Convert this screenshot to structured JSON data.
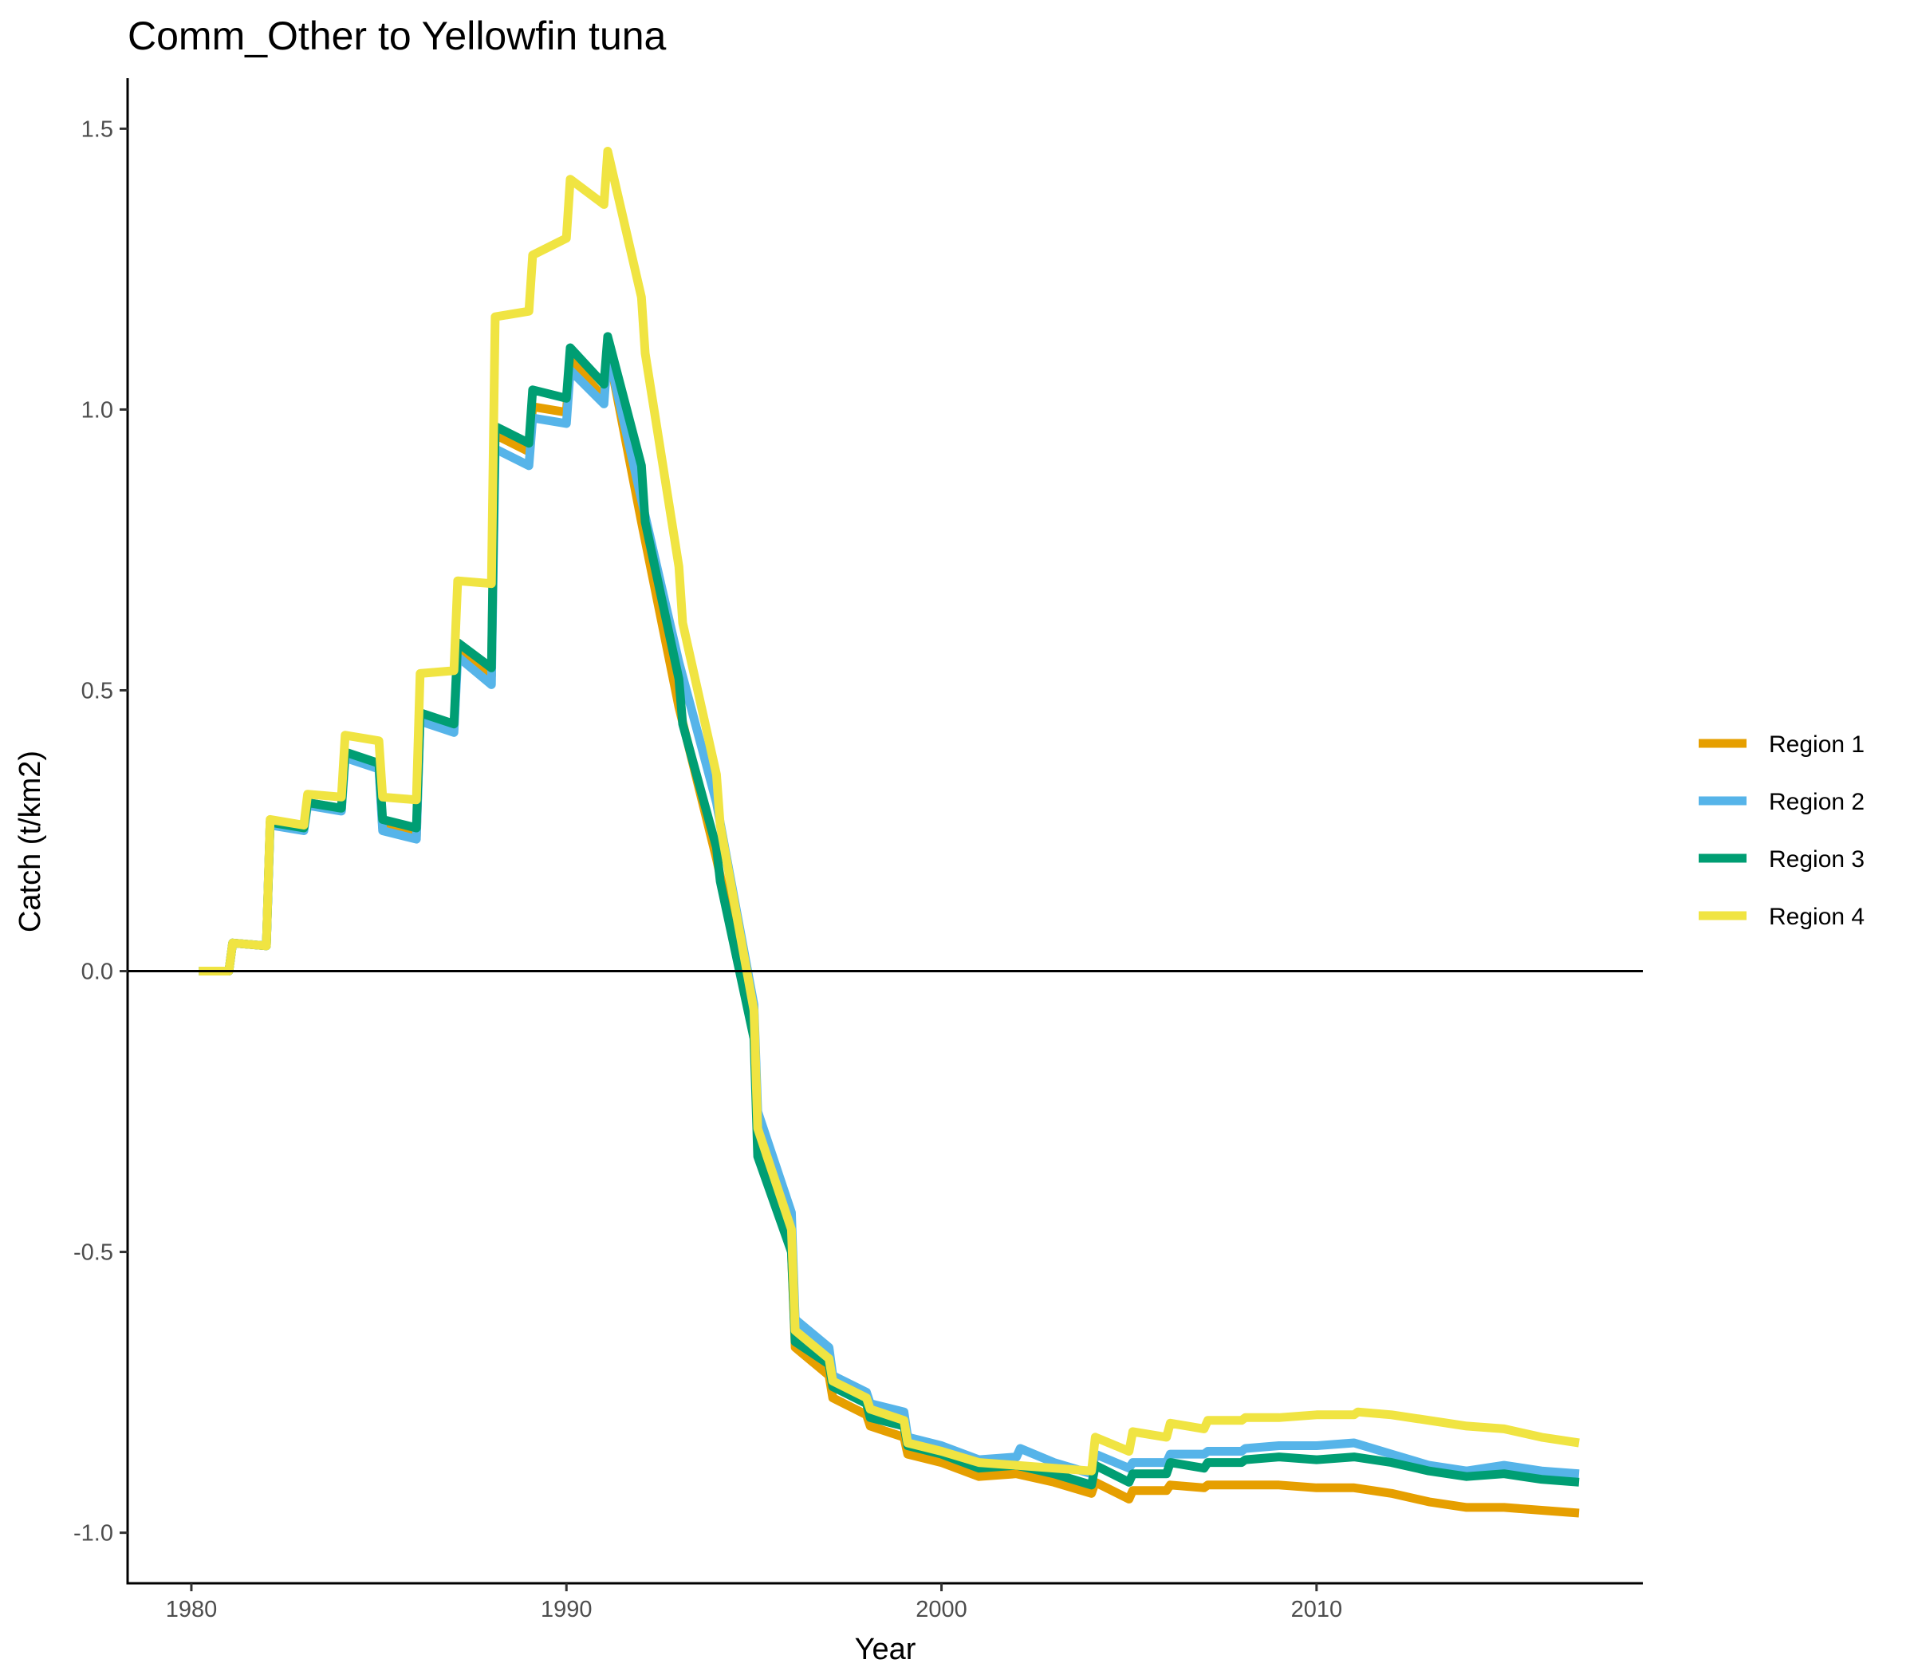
{
  "chart_data": {
    "type": "line",
    "title": "Comm_Other to Yellowfin tuna",
    "xlabel": "Year",
    "ylabel": "Catch (t/km2)",
    "xlim": [
      1978.3,
      2018.7
    ],
    "ylim": [
      -1.09,
      1.59
    ],
    "xticks": [
      1980,
      1990,
      2000,
      2010
    ],
    "yticks": [
      1.5,
      1.0,
      0.5,
      0.0,
      -0.5,
      -1.0
    ],
    "ytick_labels": [
      "1.5",
      "1.0",
      "0.5",
      "0.0",
      "-0.5",
      "-1.0"
    ],
    "hline": 0,
    "grid": false,
    "legend_position": "right",
    "series": [
      {
        "name": "Region 1",
        "color": "#E69F00",
        "points": [
          [
            1980.2,
            0
          ],
          [
            1981,
            0
          ],
          [
            1981.1,
            0.05
          ],
          [
            1982,
            0.045
          ],
          [
            1982.1,
            0.265
          ],
          [
            1983,
            0.255
          ],
          [
            1983.1,
            0.3
          ],
          [
            1984,
            0.29
          ],
          [
            1984.1,
            0.385
          ],
          [
            1985,
            0.365
          ],
          [
            1985.1,
            0.255
          ],
          [
            1986,
            0.24
          ],
          [
            1986.1,
            0.45
          ],
          [
            1987,
            0.43
          ],
          [
            1987.1,
            0.575
          ],
          [
            1988,
            0.525
          ],
          [
            1988.1,
            0.955
          ],
          [
            1989,
            0.925
          ],
          [
            1989.1,
            1.005
          ],
          [
            1990,
            0.995
          ],
          [
            1990.1,
            1.09
          ],
          [
            1991,
            1.02
          ],
          [
            1991.1,
            1.11
          ],
          [
            1992,
            0.8
          ],
          [
            1993,
            0.47
          ],
          [
            1994,
            0.2
          ],
          [
            1995,
            -0.1
          ],
          [
            1995.1,
            -0.29
          ],
          [
            1996,
            -0.5
          ],
          [
            1996.1,
            -0.67
          ],
          [
            1997,
            -0.72
          ],
          [
            1997.1,
            -0.76
          ],
          [
            1998,
            -0.79
          ],
          [
            1998.1,
            -0.81
          ],
          [
            1999,
            -0.83
          ],
          [
            1999.1,
            -0.86
          ],
          [
            2000,
            -0.875
          ],
          [
            2001,
            -0.9
          ],
          [
            2002,
            -0.895
          ],
          [
            2003,
            -0.91
          ],
          [
            2004,
            -0.93
          ],
          [
            2004.1,
            -0.91
          ],
          [
            2005,
            -0.94
          ],
          [
            2005.1,
            -0.925
          ],
          [
            2006,
            -0.925
          ],
          [
            2006.1,
            -0.915
          ],
          [
            2007,
            -0.92
          ],
          [
            2007.1,
            -0.915
          ],
          [
            2008,
            -0.915
          ],
          [
            2009,
            -0.915
          ],
          [
            2010,
            -0.92
          ],
          [
            2011,
            -0.92
          ],
          [
            2012,
            -0.93
          ],
          [
            2013,
            -0.945
          ],
          [
            2014,
            -0.955
          ],
          [
            2015,
            -0.955
          ],
          [
            2016,
            -0.96
          ],
          [
            2017,
            -0.965
          ]
        ]
      },
      {
        "name": "Region 2",
        "color": "#56B4E9",
        "points": [
          [
            1980.2,
            0
          ],
          [
            1981,
            0
          ],
          [
            1981.1,
            0.05
          ],
          [
            1982,
            0.045
          ],
          [
            1982.1,
            0.26
          ],
          [
            1983,
            0.25
          ],
          [
            1983.1,
            0.295
          ],
          [
            1984,
            0.285
          ],
          [
            1984.1,
            0.38
          ],
          [
            1985,
            0.36
          ],
          [
            1985.1,
            0.25
          ],
          [
            1986,
            0.235
          ],
          [
            1986.1,
            0.445
          ],
          [
            1987,
            0.425
          ],
          [
            1987.1,
            0.56
          ],
          [
            1988,
            0.51
          ],
          [
            1988.1,
            0.93
          ],
          [
            1989,
            0.9
          ],
          [
            1989.1,
            0.985
          ],
          [
            1990,
            0.975
          ],
          [
            1990.1,
            1.07
          ],
          [
            1991,
            1.01
          ],
          [
            1991.1,
            1.105
          ],
          [
            1992,
            0.84
          ],
          [
            1993,
            0.55
          ],
          [
            1994,
            0.3
          ],
          [
            1995,
            -0.06
          ],
          [
            1995.1,
            -0.25
          ],
          [
            1996,
            -0.43
          ],
          [
            1996.1,
            -0.62
          ],
          [
            1997,
            -0.67
          ],
          [
            1997.1,
            -0.72
          ],
          [
            1998,
            -0.75
          ],
          [
            1998.1,
            -0.77
          ],
          [
            1999,
            -0.785
          ],
          [
            1999.1,
            -0.83
          ],
          [
            2000,
            -0.845
          ],
          [
            2001,
            -0.87
          ],
          [
            2002,
            -0.865
          ],
          [
            2002.1,
            -0.85
          ],
          [
            2003,
            -0.875
          ],
          [
            2004,
            -0.895
          ],
          [
            2004.1,
            -0.86
          ],
          [
            2005,
            -0.885
          ],
          [
            2005.1,
            -0.875
          ],
          [
            2006,
            -0.875
          ],
          [
            2006.1,
            -0.86
          ],
          [
            2007,
            -0.86
          ],
          [
            2007.1,
            -0.855
          ],
          [
            2008,
            -0.855
          ],
          [
            2008.1,
            -0.85
          ],
          [
            2009,
            -0.845
          ],
          [
            2010,
            -0.845
          ],
          [
            2011,
            -0.84
          ],
          [
            2012,
            -0.86
          ],
          [
            2013,
            -0.88
          ],
          [
            2014,
            -0.89
          ],
          [
            2015,
            -0.88
          ],
          [
            2016,
            -0.89
          ],
          [
            2017,
            -0.895
          ]
        ]
      },
      {
        "name": "Region 3",
        "color": "#009E73",
        "points": [
          [
            1980.2,
            0
          ],
          [
            1981,
            0
          ],
          [
            1981.1,
            0.05
          ],
          [
            1982,
            0.045
          ],
          [
            1982.1,
            0.265
          ],
          [
            1983,
            0.255
          ],
          [
            1983.1,
            0.3
          ],
          [
            1984,
            0.29
          ],
          [
            1984.1,
            0.39
          ],
          [
            1985,
            0.37
          ],
          [
            1985.1,
            0.27
          ],
          [
            1986,
            0.255
          ],
          [
            1986.1,
            0.46
          ],
          [
            1987,
            0.44
          ],
          [
            1987.1,
            0.585
          ],
          [
            1988,
            0.54
          ],
          [
            1988.1,
            0.97
          ],
          [
            1989,
            0.94
          ],
          [
            1989.1,
            1.035
          ],
          [
            1990,
            1.02
          ],
          [
            1990.1,
            1.11
          ],
          [
            1991,
            1.045
          ],
          [
            1991.1,
            1.13
          ],
          [
            1992,
            0.9
          ],
          [
            1992.1,
            0.8
          ],
          [
            1993,
            0.52
          ],
          [
            1993.1,
            0.44
          ],
          [
            1994,
            0.22
          ],
          [
            1994.1,
            0.16
          ],
          [
            1995,
            -0.12
          ],
          [
            1995.1,
            -0.33
          ],
          [
            1996,
            -0.5
          ],
          [
            1996.1,
            -0.66
          ],
          [
            1997,
            -0.7
          ],
          [
            1997.1,
            -0.74
          ],
          [
            1998,
            -0.77
          ],
          [
            1998.1,
            -0.795
          ],
          [
            1999,
            -0.81
          ],
          [
            1999.1,
            -0.845
          ],
          [
            2000,
            -0.86
          ],
          [
            2001,
            -0.885
          ],
          [
            2002,
            -0.88
          ],
          [
            2003,
            -0.895
          ],
          [
            2004,
            -0.915
          ],
          [
            2004.1,
            -0.88
          ],
          [
            2005,
            -0.91
          ],
          [
            2005.1,
            -0.895
          ],
          [
            2006,
            -0.895
          ],
          [
            2006.1,
            -0.875
          ],
          [
            2007,
            -0.885
          ],
          [
            2007.1,
            -0.875
          ],
          [
            2008,
            -0.875
          ],
          [
            2008.1,
            -0.87
          ],
          [
            2009,
            -0.865
          ],
          [
            2010,
            -0.87
          ],
          [
            2011,
            -0.865
          ],
          [
            2012,
            -0.875
          ],
          [
            2013,
            -0.89
          ],
          [
            2014,
            -0.9
          ],
          [
            2015,
            -0.895
          ],
          [
            2016,
            -0.905
          ],
          [
            2017,
            -0.91
          ]
        ]
      },
      {
        "name": "Region 4",
        "color": "#F0E442",
        "points": [
          [
            1980.2,
            0
          ],
          [
            1981,
            0
          ],
          [
            1981.1,
            0.05
          ],
          [
            1982,
            0.045
          ],
          [
            1982.1,
            0.27
          ],
          [
            1983,
            0.26
          ],
          [
            1983.1,
            0.315
          ],
          [
            1984,
            0.31
          ],
          [
            1984.1,
            0.42
          ],
          [
            1985,
            0.41
          ],
          [
            1985.1,
            0.31
          ],
          [
            1986,
            0.305
          ],
          [
            1986.1,
            0.53
          ],
          [
            1987,
            0.535
          ],
          [
            1987.1,
            0.695
          ],
          [
            1988,
            0.69
          ],
          [
            1988.1,
            1.165
          ],
          [
            1989,
            1.175
          ],
          [
            1989.1,
            1.275
          ],
          [
            1990,
            1.305
          ],
          [
            1990.1,
            1.41
          ],
          [
            1991,
            1.365
          ],
          [
            1991.1,
            1.46
          ],
          [
            1992,
            1.2
          ],
          [
            1992.1,
            1.1
          ],
          [
            1993,
            0.72
          ],
          [
            1993.1,
            0.62
          ],
          [
            1994,
            0.35
          ],
          [
            1994.1,
            0.26
          ],
          [
            1995,
            -0.07
          ],
          [
            1995.1,
            -0.28
          ],
          [
            1996,
            -0.46
          ],
          [
            1996.1,
            -0.64
          ],
          [
            1997,
            -0.69
          ],
          [
            1997.1,
            -0.73
          ],
          [
            1998,
            -0.76
          ],
          [
            1998.1,
            -0.78
          ],
          [
            1999,
            -0.8
          ],
          [
            1999.1,
            -0.84
          ],
          [
            2000,
            -0.855
          ],
          [
            2001,
            -0.875
          ],
          [
            2002,
            -0.88
          ],
          [
            2003,
            -0.885
          ],
          [
            2004,
            -0.89
          ],
          [
            2004.1,
            -0.83
          ],
          [
            2005,
            -0.855
          ],
          [
            2005.1,
            -0.82
          ],
          [
            2006,
            -0.83
          ],
          [
            2006.1,
            -0.805
          ],
          [
            2007,
            -0.815
          ],
          [
            2007.1,
            -0.8
          ],
          [
            2008,
            -0.8
          ],
          [
            2008.1,
            -0.795
          ],
          [
            2009,
            -0.795
          ],
          [
            2010,
            -0.79
          ],
          [
            2011,
            -0.79
          ],
          [
            2011.1,
            -0.785
          ],
          [
            2012,
            -0.79
          ],
          [
            2013,
            -0.8
          ],
          [
            2014,
            -0.81
          ],
          [
            2015,
            -0.815
          ],
          [
            2016,
            -0.83
          ],
          [
            2017,
            -0.84
          ]
        ]
      }
    ]
  }
}
